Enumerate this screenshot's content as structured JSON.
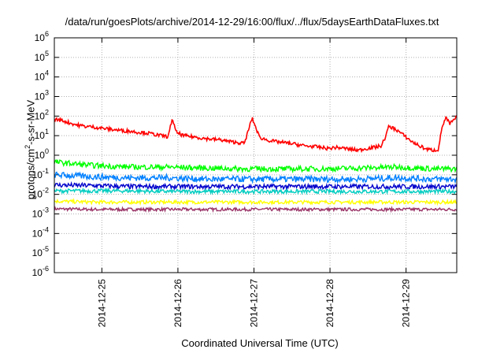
{
  "chart_data": {
    "type": "line",
    "title": "/data/run/goesPlots/archive/2014-12-29/16:00/flux/../flux/5daysEarthDataFluxes.txt",
    "xlabel": "Coordinated Universal Time (UTC)",
    "ylabel_prefix": "protons/cm",
    "ylabel_sup": "2",
    "ylabel_suffix": "-s-sr-MeV",
    "yscale": "log",
    "ylim": [
      1e-06,
      1000000.0
    ],
    "ytick_exponents": [
      -6,
      -5,
      -4,
      -3,
      -2,
      -1,
      0,
      1,
      2,
      3,
      4,
      5,
      6
    ],
    "xlim": [
      "2014-12-24T09:00",
      "2014-12-29T16:00"
    ],
    "xticks": [
      "2014-12-25",
      "2014-12-26",
      "2014-12-27",
      "2014-12-28",
      "2014-12-29"
    ],
    "grid": true,
    "series": [
      {
        "color": "#ff0000",
        "x_days": [
          0,
          0.1,
          0.2,
          0.3,
          0.4,
          0.5,
          0.6,
          0.7,
          0.8,
          0.9,
          1.0,
          1.1,
          1.2,
          1.3,
          1.4,
          1.5,
          1.55,
          1.6,
          1.7,
          1.8,
          1.9,
          2.0,
          2.1,
          2.2,
          2.3,
          2.4,
          2.5,
          2.6,
          2.7,
          2.8,
          2.9,
          3.0,
          3.1,
          3.2,
          3.3,
          3.4,
          3.5,
          3.6,
          3.7,
          3.8,
          3.9,
          4.0,
          4.1,
          4.2,
          4.3,
          4.35,
          4.4,
          4.5,
          4.6,
          4.7,
          4.8,
          4.9,
          5.0,
          5.05,
          5.1,
          5.15,
          5.2,
          5.25,
          5.29
        ],
        "values": [
          70,
          60,
          45,
          35,
          30,
          28,
          25,
          22,
          20,
          18,
          17,
          15,
          14,
          12,
          10,
          9,
          80,
          15,
          10,
          9,
          8,
          7,
          6.5,
          6,
          5,
          4.5,
          4,
          80,
          8,
          6,
          5,
          4.5,
          4,
          3.5,
          3,
          2.8,
          2.5,
          2.2,
          2.5,
          2.3,
          2.0,
          1.8,
          2.2,
          2.5,
          3,
          8,
          30,
          20,
          10,
          5,
          3,
          2,
          1.8,
          2.0,
          30,
          80,
          40,
          60,
          90
        ]
      },
      {
        "color": "#00ff00",
        "x_days": [
          0,
          0.5,
          1.0,
          1.5,
          2.0,
          2.5,
          3.0,
          3.5,
          4.0,
          4.5,
          5.0,
          5.29
        ],
        "values": [
          0.45,
          0.3,
          0.25,
          0.25,
          0.22,
          0.2,
          0.2,
          0.2,
          0.22,
          0.25,
          0.2,
          0.2
        ]
      },
      {
        "color": "#0080ff",
        "x_days": [
          0,
          0.5,
          1.0,
          1.5,
          2.0,
          2.5,
          3.0,
          3.5,
          4.0,
          4.5,
          5.0,
          5.29
        ],
        "values": [
          0.1,
          0.08,
          0.07,
          0.07,
          0.06,
          0.06,
          0.06,
          0.06,
          0.06,
          0.07,
          0.06,
          0.06
        ]
      },
      {
        "color": "#00ccc0",
        "x_days": [
          0,
          0.5,
          1.0,
          1.5,
          2.0,
          2.5,
          3.0,
          3.5,
          4.0,
          4.5,
          5.0,
          5.29
        ],
        "values": [
          0.015,
          0.015,
          0.015,
          0.014,
          0.014,
          0.014,
          0.014,
          0.014,
          0.014,
          0.014,
          0.014,
          0.014
        ]
      },
      {
        "color": "#0000cc",
        "x_days": [
          0,
          0.5,
          1.0,
          1.5,
          2.0,
          2.5,
          3.0,
          3.5,
          4.0,
          4.5,
          5.0,
          5.29
        ],
        "values": [
          0.03,
          0.028,
          0.025,
          0.025,
          0.025,
          0.025,
          0.025,
          0.025,
          0.025,
          0.025,
          0.025,
          0.025
        ]
      },
      {
        "color": "#ffff00",
        "x_days": [
          0,
          0.5,
          1.0,
          1.5,
          2.0,
          2.5,
          3.0,
          3.5,
          4.0,
          4.5,
          5.0,
          5.29
        ],
        "values": [
          0.0045,
          0.004,
          0.004,
          0.004,
          0.004,
          0.004,
          0.004,
          0.004,
          0.004,
          0.004,
          0.004,
          0.004
        ]
      },
      {
        "color": "#993366",
        "x_days": [
          0,
          0.5,
          1.0,
          1.5,
          2.0,
          2.5,
          3.0,
          3.5,
          4.0,
          4.5,
          5.0,
          5.29
        ],
        "values": [
          0.0018,
          0.0017,
          0.0017,
          0.0017,
          0.0017,
          0.0017,
          0.0017,
          0.0017,
          0.0017,
          0.0017,
          0.0017,
          0.0017
        ]
      }
    ]
  }
}
